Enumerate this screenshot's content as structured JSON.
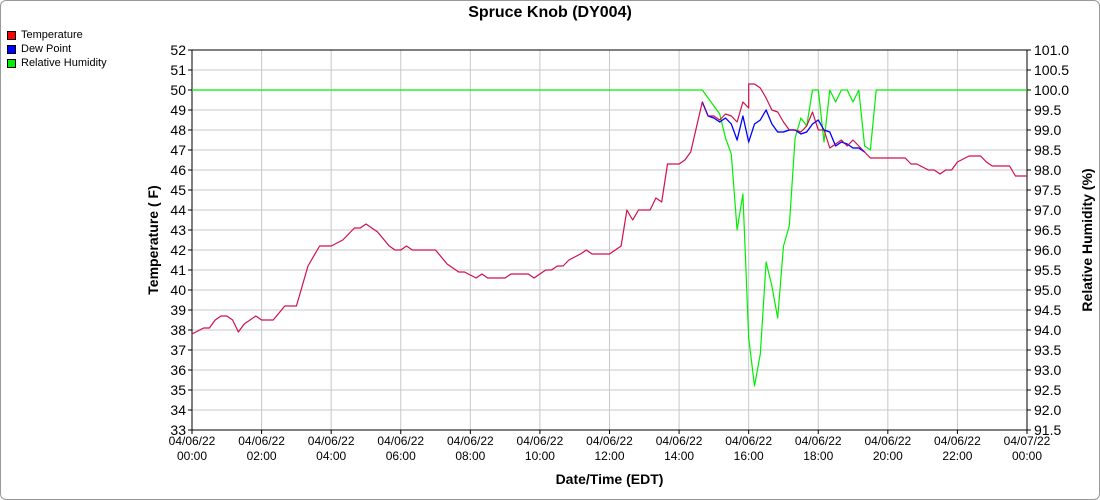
{
  "chart_data": {
    "type": "line",
    "title": "Spruce Knob (DY004)",
    "xlabel": "Date/Time (EDT)",
    "ylabel": "Temperature ( F)",
    "y2label": "Relative Humidity (%)",
    "ylim": [
      33,
      52
    ],
    "y2lim": [
      91.5,
      101.0
    ],
    "grid": true,
    "legend_position": "top-left",
    "yticks": [
      33,
      34,
      35,
      36,
      37,
      38,
      39,
      40,
      41,
      42,
      43,
      44,
      45,
      46,
      47,
      48,
      49,
      50,
      51,
      52
    ],
    "y2ticks": [
      "91.5",
      "92.0",
      "92.5",
      "93.0",
      "93.5",
      "94.0",
      "94.5",
      "95.0",
      "95.5",
      "96.0",
      "96.5",
      "97.0",
      "97.5",
      "98.0",
      "98.5",
      "99.0",
      "99.5",
      "100.0",
      "100.5",
      "101.0"
    ],
    "xticks": [
      {
        "date": "04/06/22",
        "time": "00:00"
      },
      {
        "date": "04/06/22",
        "time": "02:00"
      },
      {
        "date": "04/06/22",
        "time": "04:00"
      },
      {
        "date": "04/06/22",
        "time": "06:00"
      },
      {
        "date": "04/06/22",
        "time": "08:00"
      },
      {
        "date": "04/06/22",
        "time": "10:00"
      },
      {
        "date": "04/06/22",
        "time": "12:00"
      },
      {
        "date": "04/06/22",
        "time": "14:00"
      },
      {
        "date": "04/06/22",
        "time": "16:00"
      },
      {
        "date": "04/06/22",
        "time": "18:00"
      },
      {
        "date": "04/06/22",
        "time": "20:00"
      },
      {
        "date": "04/06/22",
        "time": "22:00"
      },
      {
        "date": "04/07/22",
        "time": "00:00"
      }
    ],
    "series": [
      {
        "name": "Temperature",
        "axis": "left",
        "color": "#ff0000",
        "points": [
          [
            "04/06/22 00:00",
            37.8
          ],
          [
            "04/06/22 00:20",
            38.1
          ],
          [
            "04/06/22 00:30",
            38.1
          ],
          [
            "04/06/22 00:40",
            38.5
          ],
          [
            "04/06/22 00:50",
            38.7
          ],
          [
            "04/06/22 01:00",
            38.7
          ],
          [
            "04/06/22 01:10",
            38.5
          ],
          [
            "04/06/22 01:20",
            37.9
          ],
          [
            "04/06/22 01:30",
            38.3
          ],
          [
            "04/06/22 01:50",
            38.7
          ],
          [
            "04/06/22 02:00",
            38.5
          ],
          [
            "04/06/22 02:20",
            38.5
          ],
          [
            "04/06/22 02:40",
            39.2
          ],
          [
            "04/06/22 03:00",
            39.2
          ],
          [
            "04/06/22 03:20",
            41.2
          ],
          [
            "04/06/22 03:40",
            42.2
          ],
          [
            "04/06/22 04:00",
            42.2
          ],
          [
            "04/06/22 04:20",
            42.5
          ],
          [
            "04/06/22 04:30",
            42.8
          ],
          [
            "04/06/22 04:40",
            43.1
          ],
          [
            "04/06/22 04:50",
            43.1
          ],
          [
            "04/06/22 05:00",
            43.3
          ],
          [
            "04/06/22 05:20",
            42.9
          ],
          [
            "04/06/22 05:40",
            42.2
          ],
          [
            "04/06/22 05:50",
            42.0
          ],
          [
            "04/06/22 06:00",
            42.0
          ],
          [
            "04/06/22 06:10",
            42.2
          ],
          [
            "04/06/22 06:20",
            42.0
          ],
          [
            "04/06/22 07:00",
            42.0
          ],
          [
            "04/06/22 07:20",
            41.3
          ],
          [
            "04/06/22 07:40",
            40.9
          ],
          [
            "04/06/22 07:50",
            40.9
          ],
          [
            "04/06/22 08:10",
            40.6
          ],
          [
            "04/06/22 08:20",
            40.8
          ],
          [
            "04/06/22 08:30",
            40.6
          ],
          [
            "04/06/22 09:00",
            40.6
          ],
          [
            "04/06/22 09:10",
            40.8
          ],
          [
            "04/06/22 09:40",
            40.8
          ],
          [
            "04/06/22 09:50",
            40.6
          ],
          [
            "04/06/22 10:00",
            40.8
          ],
          [
            "04/06/22 10:10",
            41.0
          ],
          [
            "04/06/22 10:20",
            41.0
          ],
          [
            "04/06/22 10:30",
            41.2
          ],
          [
            "04/06/22 10:40",
            41.2
          ],
          [
            "04/06/22 10:50",
            41.5
          ],
          [
            "04/06/22 11:10",
            41.8
          ],
          [
            "04/06/22 11:20",
            42.0
          ],
          [
            "04/06/22 11:30",
            41.8
          ],
          [
            "04/06/22 12:00",
            41.8
          ],
          [
            "04/06/22 12:10",
            42.0
          ],
          [
            "04/06/22 12:20",
            42.2
          ],
          [
            "04/06/22 12:30",
            44.0
          ],
          [
            "04/06/22 12:40",
            43.5
          ],
          [
            "04/06/22 12:50",
            44.0
          ],
          [
            "04/06/22 13:10",
            44.0
          ],
          [
            "04/06/22 13:20",
            44.6
          ],
          [
            "04/06/22 13:30",
            44.4
          ],
          [
            "04/06/22 13:40",
            46.3
          ],
          [
            "04/06/22 14:00",
            46.3
          ],
          [
            "04/06/22 14:10",
            46.5
          ],
          [
            "04/06/22 14:20",
            46.9
          ],
          [
            "04/06/22 14:40",
            49.4
          ],
          [
            "04/06/22 14:50",
            48.7
          ],
          [
            "04/06/22 15:00",
            48.7
          ],
          [
            "04/06/22 15:10",
            48.5
          ],
          [
            "04/06/22 15:20",
            48.8
          ],
          [
            "04/06/22 15:30",
            48.7
          ],
          [
            "04/06/22 15:40",
            48.4
          ],
          [
            "04/06/22 15:50",
            49.4
          ],
          [
            "04/06/22 16:00",
            49.1
          ],
          [
            "04/06/22 16:00",
            50.3
          ],
          [
            "04/06/22 16:10",
            50.3
          ],
          [
            "04/06/22 16:20",
            50.1
          ],
          [
            "04/06/22 16:30",
            49.6
          ],
          [
            "04/06/22 16:40",
            49.0
          ],
          [
            "04/06/22 16:50",
            48.9
          ],
          [
            "04/06/22 17:00",
            48.4
          ],
          [
            "04/06/22 17:10",
            48.0
          ],
          [
            "04/06/22 17:20",
            48.0
          ],
          [
            "04/06/22 17:30",
            47.9
          ],
          [
            "04/06/22 17:40",
            48.2
          ],
          [
            "04/06/22 17:50",
            48.9
          ],
          [
            "04/06/22 18:00",
            48.0
          ],
          [
            "04/06/22 18:10",
            48.0
          ],
          [
            "04/06/22 18:20",
            47.1
          ],
          [
            "04/06/22 18:40",
            47.5
          ],
          [
            "04/06/22 18:50",
            47.2
          ],
          [
            "04/06/22 19:00",
            47.5
          ],
          [
            "04/06/22 19:10",
            47.2
          ],
          [
            "04/06/22 19:20",
            46.9
          ],
          [
            "04/06/22 19:30",
            46.6
          ],
          [
            "04/06/22 20:30",
            46.6
          ],
          [
            "04/06/22 20:40",
            46.3
          ],
          [
            "04/06/22 20:50",
            46.3
          ],
          [
            "04/06/22 21:10",
            46.0
          ],
          [
            "04/06/22 21:20",
            46.0
          ],
          [
            "04/06/22 21:30",
            45.8
          ],
          [
            "04/06/22 21:40",
            46.0
          ],
          [
            "04/06/22 21:50",
            46.0
          ],
          [
            "04/06/22 22:00",
            46.4
          ],
          [
            "04/06/22 22:20",
            46.7
          ],
          [
            "04/06/22 22:40",
            46.7
          ],
          [
            "04/06/22 22:50",
            46.4
          ],
          [
            "04/06/22 23:00",
            46.2
          ],
          [
            "04/06/22 23:30",
            46.2
          ],
          [
            "04/06/22 23:40",
            45.7
          ],
          [
            "04/07/22 00:00",
            45.7
          ]
        ]
      },
      {
        "name": "Dew Point",
        "axis": "left",
        "color": "#0000ff",
        "points": [
          [
            "04/06/22 14:40",
            49.4
          ],
          [
            "04/06/22 14:50",
            48.7
          ],
          [
            "04/06/22 15:00",
            48.6
          ],
          [
            "04/06/22 15:10",
            48.4
          ],
          [
            "04/06/22 15:20",
            48.6
          ],
          [
            "04/06/22 15:30",
            48.3
          ],
          [
            "04/06/22 15:40",
            47.5
          ],
          [
            "04/06/22 15:50",
            48.7
          ],
          [
            "04/06/22 16:00",
            47.4
          ],
          [
            "04/06/22 16:10",
            48.3
          ],
          [
            "04/06/22 16:20",
            48.5
          ],
          [
            "04/06/22 16:30",
            49.0
          ],
          [
            "04/06/22 16:40",
            48.3
          ],
          [
            "04/06/22 16:50",
            47.9
          ],
          [
            "04/06/22 17:00",
            47.9
          ],
          [
            "04/06/22 17:10",
            48.0
          ],
          [
            "04/06/22 17:20",
            48.0
          ],
          [
            "04/06/22 17:30",
            47.8
          ],
          [
            "04/06/22 17:40",
            47.9
          ],
          [
            "04/06/22 17:50",
            48.3
          ],
          [
            "04/06/22 18:00",
            48.5
          ],
          [
            "04/06/22 18:10",
            48.0
          ],
          [
            "04/06/22 18:20",
            47.9
          ],
          [
            "04/06/22 18:30",
            47.2
          ],
          [
            "04/06/22 18:40",
            47.4
          ],
          [
            "04/06/22 18:50",
            47.3
          ],
          [
            "04/06/22 19:00",
            47.1
          ],
          [
            "04/06/22 19:10",
            47.1
          ],
          [
            "04/06/22 19:20",
            46.9
          ]
        ]
      },
      {
        "name": "Relative Humidity",
        "axis": "right",
        "color": "#00ee00",
        "points": [
          [
            "04/06/22 00:00",
            100.0
          ],
          [
            "04/06/22 14:40",
            100.0
          ],
          [
            "04/06/22 15:00",
            99.6
          ],
          [
            "04/06/22 15:10",
            99.4
          ],
          [
            "04/06/22 15:20",
            98.8
          ],
          [
            "04/06/22 15:30",
            98.4
          ],
          [
            "04/06/22 15:40",
            96.5
          ],
          [
            "04/06/22 15:50",
            97.4
          ],
          [
            "04/06/22 16:00",
            93.8
          ],
          [
            "04/06/22 16:10",
            92.6
          ],
          [
            "04/06/22 16:20",
            93.4
          ],
          [
            "04/06/22 16:30",
            95.7
          ],
          [
            "04/06/22 16:40",
            95.1
          ],
          [
            "04/06/22 16:50",
            94.3
          ],
          [
            "04/06/22 17:00",
            96.1
          ],
          [
            "04/06/22 17:10",
            96.6
          ],
          [
            "04/06/22 17:20",
            98.8
          ],
          [
            "04/06/22 17:30",
            99.3
          ],
          [
            "04/06/22 17:40",
            99.1
          ],
          [
            "04/06/22 17:50",
            100.0
          ],
          [
            "04/06/22 18:00",
            100.0
          ],
          [
            "04/06/22 18:10",
            98.7
          ],
          [
            "04/06/22 18:20",
            100.0
          ],
          [
            "04/06/22 18:30",
            99.7
          ],
          [
            "04/06/22 18:40",
            100.0
          ],
          [
            "04/06/22 18:50",
            100.0
          ],
          [
            "04/06/22 19:00",
            99.7
          ],
          [
            "04/06/22 19:10",
            100.0
          ],
          [
            "04/06/22 19:20",
            98.6
          ],
          [
            "04/06/22 19:30",
            98.5
          ],
          [
            "04/06/22 19:40",
            100.0
          ],
          [
            "04/07/22 00:00",
            100.0
          ]
        ]
      }
    ]
  }
}
